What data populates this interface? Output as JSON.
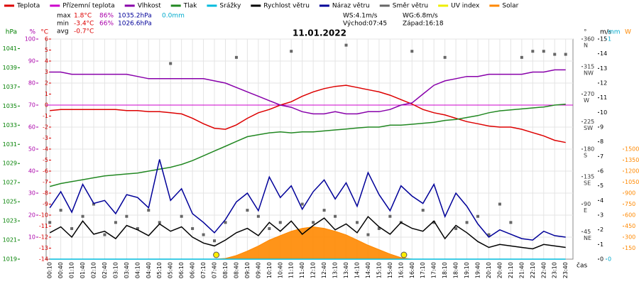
{
  "chart_data": {
    "type": "line",
    "title": "11.01.2022",
    "x_label": "čas",
    "x": [
      "00:10",
      "00:40",
      "01:10",
      "01:40",
      "02:10",
      "02:40",
      "03:10",
      "03:40",
      "04:10",
      "04:40",
      "05:10",
      "05:40",
      "06:10",
      "06:40",
      "07:10",
      "07:40",
      "08:10",
      "08:40",
      "09:10",
      "09:40",
      "10:10",
      "10:40",
      "11:10",
      "11:40",
      "12:10",
      "12:40",
      "13:10",
      "13:40",
      "14:10",
      "14:40",
      "15:10",
      "15:40",
      "16:10",
      "16:40",
      "17:10",
      "17:40",
      "18:10",
      "18:40",
      "19:10",
      "19:40",
      "20:10",
      "20:40",
      "21:10",
      "21:40",
      "22:10",
      "22:40",
      "23:10",
      "23:40"
    ],
    "axes": [
      {
        "unit": "hPa",
        "side": "left",
        "color": "#008000",
        "lim": [
          1019,
          1042
        ],
        "ticks": [
          1019,
          1021,
          1023,
          1025,
          1027,
          1029,
          1031,
          1033,
          1035,
          1037,
          1039,
          1041
        ]
      },
      {
        "unit": "%",
        "side": "left",
        "color": "#aa00aa",
        "lim": [
          0,
          100
        ],
        "ticks": [
          10,
          20,
          30,
          40,
          50,
          60,
          70,
          80,
          90,
          100
        ]
      },
      {
        "unit": "°C",
        "side": "left",
        "color": "#dd0000",
        "lim": [
          -14,
          6
        ],
        "ticks": [
          -14,
          -13,
          -12,
          -11,
          -10,
          -9,
          -8,
          -7,
          -6,
          -5,
          -4,
          -3,
          -2,
          -1,
          0,
          1,
          2,
          3,
          4,
          5,
          6
        ]
      },
      {
        "unit": "°",
        "side": "right",
        "color": "#333333",
        "lim": [
          0,
          360
        ],
        "ticks": [
          45,
          90,
          135,
          180,
          225,
          270,
          315,
          360
        ],
        "tick_names": [
          "NE",
          "E",
          "SE",
          "S",
          "SW",
          "W",
          "NW",
          "N"
        ]
      },
      {
        "unit": "m/s",
        "side": "right",
        "color": "#000000",
        "lim": [
          0,
          15
        ],
        "ticks": [
          0,
          1,
          2,
          3,
          4,
          5,
          6,
          7,
          8,
          9,
          10,
          11,
          12,
          13,
          14,
          15
        ]
      },
      {
        "unit": "mm",
        "side": "right",
        "color": "#00aacc",
        "lim": [
          0,
          1
        ],
        "ticks": [
          0,
          1
        ]
      },
      {
        "unit": "W",
        "side": "right",
        "color": "#ff8800",
        "lim": [
          0,
          3000
        ],
        "ticks": [
          150,
          300,
          450,
          600,
          750,
          900,
          1050,
          1200,
          1350,
          1500
        ]
      }
    ],
    "reference_line": {
      "axis": "°C",
      "value": 0,
      "color": "#cc00cc"
    },
    "grid": true,
    "series": [
      {
        "name": "Teplota",
        "color": "#dd0000",
        "axis": "°C",
        "style": "line",
        "values": [
          -0.5,
          -0.4,
          -0.4,
          -0.4,
          -0.4,
          -0.4,
          -0.4,
          -0.5,
          -0.5,
          -0.6,
          -0.6,
          -0.7,
          -0.8,
          -1.2,
          -1.7,
          -2.1,
          -2.2,
          -1.8,
          -1.2,
          -0.7,
          -0.4,
          0.0,
          0.3,
          0.8,
          1.2,
          1.5,
          1.7,
          1.8,
          1.6,
          1.4,
          1.2,
          0.9,
          0.5,
          0.1,
          -0.4,
          -0.7,
          -0.9,
          -1.2,
          -1.5,
          -1.7,
          -1.9,
          -2.0,
          -2.0,
          -2.2,
          -2.5,
          -2.8,
          -3.2,
          -3.4
        ]
      },
      {
        "name": "Přízemní teplota",
        "color": "#cc00cc",
        "axis": "°C",
        "style": "line",
        "values": [
          null,
          null,
          null,
          null,
          null,
          null,
          null,
          null,
          null,
          null,
          null,
          null,
          null,
          null,
          null,
          null,
          null,
          null,
          null,
          null,
          null,
          null,
          null,
          null,
          null,
          null,
          null,
          null,
          null,
          null,
          null,
          null,
          null,
          null,
          null,
          null,
          null,
          null,
          null,
          null,
          null,
          null,
          null,
          null,
          null,
          null,
          null,
          null
        ]
      },
      {
        "name": "Vlhkost",
        "color": "#8800aa",
        "axis": "%",
        "style": "line",
        "values": [
          85,
          85,
          84,
          84,
          84,
          84,
          84,
          84,
          83,
          82,
          82,
          82,
          82,
          82,
          82,
          81,
          80,
          78,
          76,
          74,
          72,
          70,
          69,
          67,
          66,
          66,
          67,
          66,
          66,
          67,
          67,
          68,
          70,
          71,
          75,
          79,
          81,
          82,
          83,
          83,
          84,
          84,
          84,
          84,
          85,
          85,
          86,
          86
        ]
      },
      {
        "name": "Tlak",
        "color": "#228822",
        "axis": "hPa",
        "style": "line",
        "values": [
          1026.6,
          1026.9,
          1027.1,
          1027.3,
          1027.5,
          1027.7,
          1027.8,
          1027.9,
          1028.0,
          1028.2,
          1028.4,
          1028.6,
          1028.9,
          1029.3,
          1029.8,
          1030.3,
          1030.8,
          1031.3,
          1031.8,
          1032.0,
          1032.2,
          1032.3,
          1032.2,
          1032.3,
          1032.3,
          1032.4,
          1032.5,
          1032.6,
          1032.7,
          1032.8,
          1032.8,
          1033.0,
          1033.0,
          1033.1,
          1033.2,
          1033.3,
          1033.5,
          1033.6,
          1033.8,
          1034.0,
          1034.3,
          1034.5,
          1034.6,
          1034.7,
          1034.8,
          1034.9,
          1035.1,
          1035.2
        ]
      },
      {
        "name": "Srážky",
        "color": "#00bbdd",
        "axis": "mm",
        "style": "line",
        "values": [
          0,
          0,
          0,
          0,
          0,
          0,
          0,
          0,
          0,
          0,
          0,
          0,
          0,
          0,
          0,
          0,
          0,
          0,
          0,
          0,
          0,
          0,
          0,
          0,
          0,
          0,
          0,
          0,
          0,
          0,
          0,
          0,
          0,
          0,
          0,
          0,
          0,
          0,
          0,
          0,
          0,
          0,
          0,
          0,
          0,
          0,
          0,
          0
        ]
      },
      {
        "name": "Rychlost větru",
        "color": "#000000",
        "axis": "m/s",
        "style": "line",
        "values": [
          1.8,
          2.2,
          1.5,
          2.6,
          1.7,
          1.9,
          1.4,
          2.3,
          2.0,
          1.6,
          2.4,
          1.9,
          2.2,
          1.5,
          1.1,
          0.9,
          1.3,
          1.8,
          2.1,
          1.6,
          2.5,
          1.9,
          2.6,
          1.7,
          2.3,
          2.8,
          2.0,
          2.4,
          1.8,
          2.9,
          2.2,
          1.7,
          2.5,
          2.1,
          1.9,
          2.6,
          1.4,
          2.3,
          1.8,
          1.2,
          0.8,
          1.0,
          0.9,
          0.8,
          0.7,
          1.0,
          0.9,
          0.8
        ]
      },
      {
        "name": "Náraz větru",
        "color": "#000099",
        "axis": "m/s",
        "style": "line",
        "values": [
          3.5,
          4.6,
          3.2,
          5.1,
          3.8,
          4.0,
          3.1,
          4.4,
          4.2,
          3.5,
          6.8,
          4.0,
          4.8,
          3.1,
          2.5,
          1.8,
          2.7,
          3.9,
          4.5,
          3.3,
          5.6,
          4.2,
          5.0,
          3.4,
          4.6,
          5.4,
          4.1,
          5.2,
          3.6,
          5.9,
          4.4,
          3.3,
          5.0,
          4.3,
          3.8,
          5.1,
          2.9,
          4.5,
          3.6,
          2.4,
          1.5,
          2.0,
          1.7,
          1.4,
          1.3,
          1.9,
          1.6,
          1.5
        ]
      },
      {
        "name": "Směr větru",
        "color": "#666666",
        "axis": "°",
        "style": "scatter",
        "values": [
          60,
          80,
          50,
          70,
          90,
          40,
          60,
          70,
          50,
          80,
          60,
          320,
          70,
          50,
          40,
          30,
          60,
          330,
          80,
          70,
          50,
          60,
          340,
          90,
          60,
          80,
          70,
          350,
          60,
          40,
          50,
          70,
          60,
          340,
          80,
          60,
          330,
          50,
          60,
          70,
          40,
          90,
          60,
          330,
          340,
          340,
          335,
          335
        ]
      },
      {
        "name": "UV index",
        "color": "#eeee00",
        "style": "line",
        "values": [
          null,
          null,
          null,
          null,
          null,
          null,
          null,
          null,
          null,
          null,
          null,
          null,
          null,
          null,
          null,
          null,
          null,
          null,
          null,
          null,
          null,
          null,
          null,
          null,
          null,
          null,
          null,
          null,
          null,
          null,
          null,
          null,
          null,
          null,
          null,
          null,
          null,
          null,
          null,
          null,
          null,
          null,
          null,
          null,
          null,
          null,
          null,
          null
        ]
      },
      {
        "name": "Solar",
        "color": "#ff8800",
        "axis": "W",
        "style": "area",
        "values": [
          0,
          0,
          0,
          0,
          0,
          0,
          0,
          0,
          0,
          0,
          0,
          0,
          0,
          0,
          0,
          0,
          10,
          50,
          110,
          180,
          260,
          320,
          380,
          420,
          440,
          420,
          380,
          330,
          260,
          190,
          130,
          70,
          20,
          0,
          0,
          0,
          0,
          0,
          0,
          0,
          0,
          0,
          0,
          0,
          0,
          0,
          0,
          0
        ]
      }
    ],
    "stats": [
      {
        "label": "max",
        "items": [
          {
            "text": "1.8°C",
            "color": "#dd0000"
          },
          {
            "text": "86%",
            "color": "#aa00aa"
          },
          {
            "text": "1035.2hPa",
            "color": "#000099"
          },
          {
            "text": "0.0mm",
            "color": "#00aacc"
          }
        ]
      },
      {
        "label": "min",
        "items": [
          {
            "text": "-3.4°C",
            "color": "#dd0000"
          },
          {
            "text": "66%",
            "color": "#aa00aa"
          },
          {
            "text": "1026.6hPa",
            "color": "#000099"
          }
        ]
      },
      {
        "label": "avg",
        "items": [
          {
            "text": "-0.7°C",
            "color": "#dd0000"
          }
        ]
      }
    ],
    "wind": [
      "WS:4.1m/s",
      "WG:6.8m/s"
    ],
    "sun": {
      "rise_label": "Východ:",
      "rise": "07:45",
      "set_label": "Západ:",
      "set": "16:18",
      "color": "#ffee00"
    }
  }
}
